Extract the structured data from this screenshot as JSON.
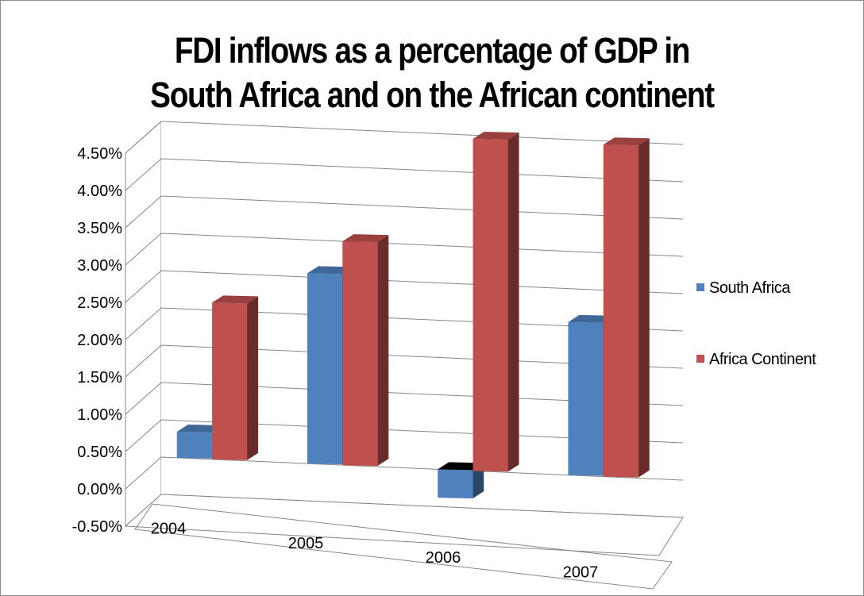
{
  "chart_data": {
    "type": "bar",
    "title": [
      "FDI inflows as a percentage of GDP in",
      "South Africa and on the African continent"
    ],
    "categories": [
      "2004",
      "2005",
      "2006",
      "2007"
    ],
    "series": [
      {
        "name": "South Africa",
        "values": [
          0.0035,
          0.0255,
          -0.0038,
          0.0205
        ],
        "color": "#4f81bd"
      },
      {
        "name": "Africa Continent",
        "values": [
          0.021,
          0.03,
          0.0445,
          0.0445
        ],
        "color": "#c0504d"
      }
    ],
    "ylim": [
      -0.005,
      0.045
    ],
    "yticks": [
      "4.50%",
      "4.00%",
      "3.50%",
      "3.00%",
      "2.50%",
      "2.00%",
      "1.50%",
      "1.00%",
      "0.50%",
      "0.00%",
      "-0.50%"
    ],
    "grid": true,
    "legend_position": "right",
    "style": "3d-column"
  },
  "legend": {
    "items": [
      {
        "label": "South Africa",
        "color": "#4f81bd"
      },
      {
        "label": "Africa Continent",
        "color": "#c0504d"
      }
    ]
  }
}
